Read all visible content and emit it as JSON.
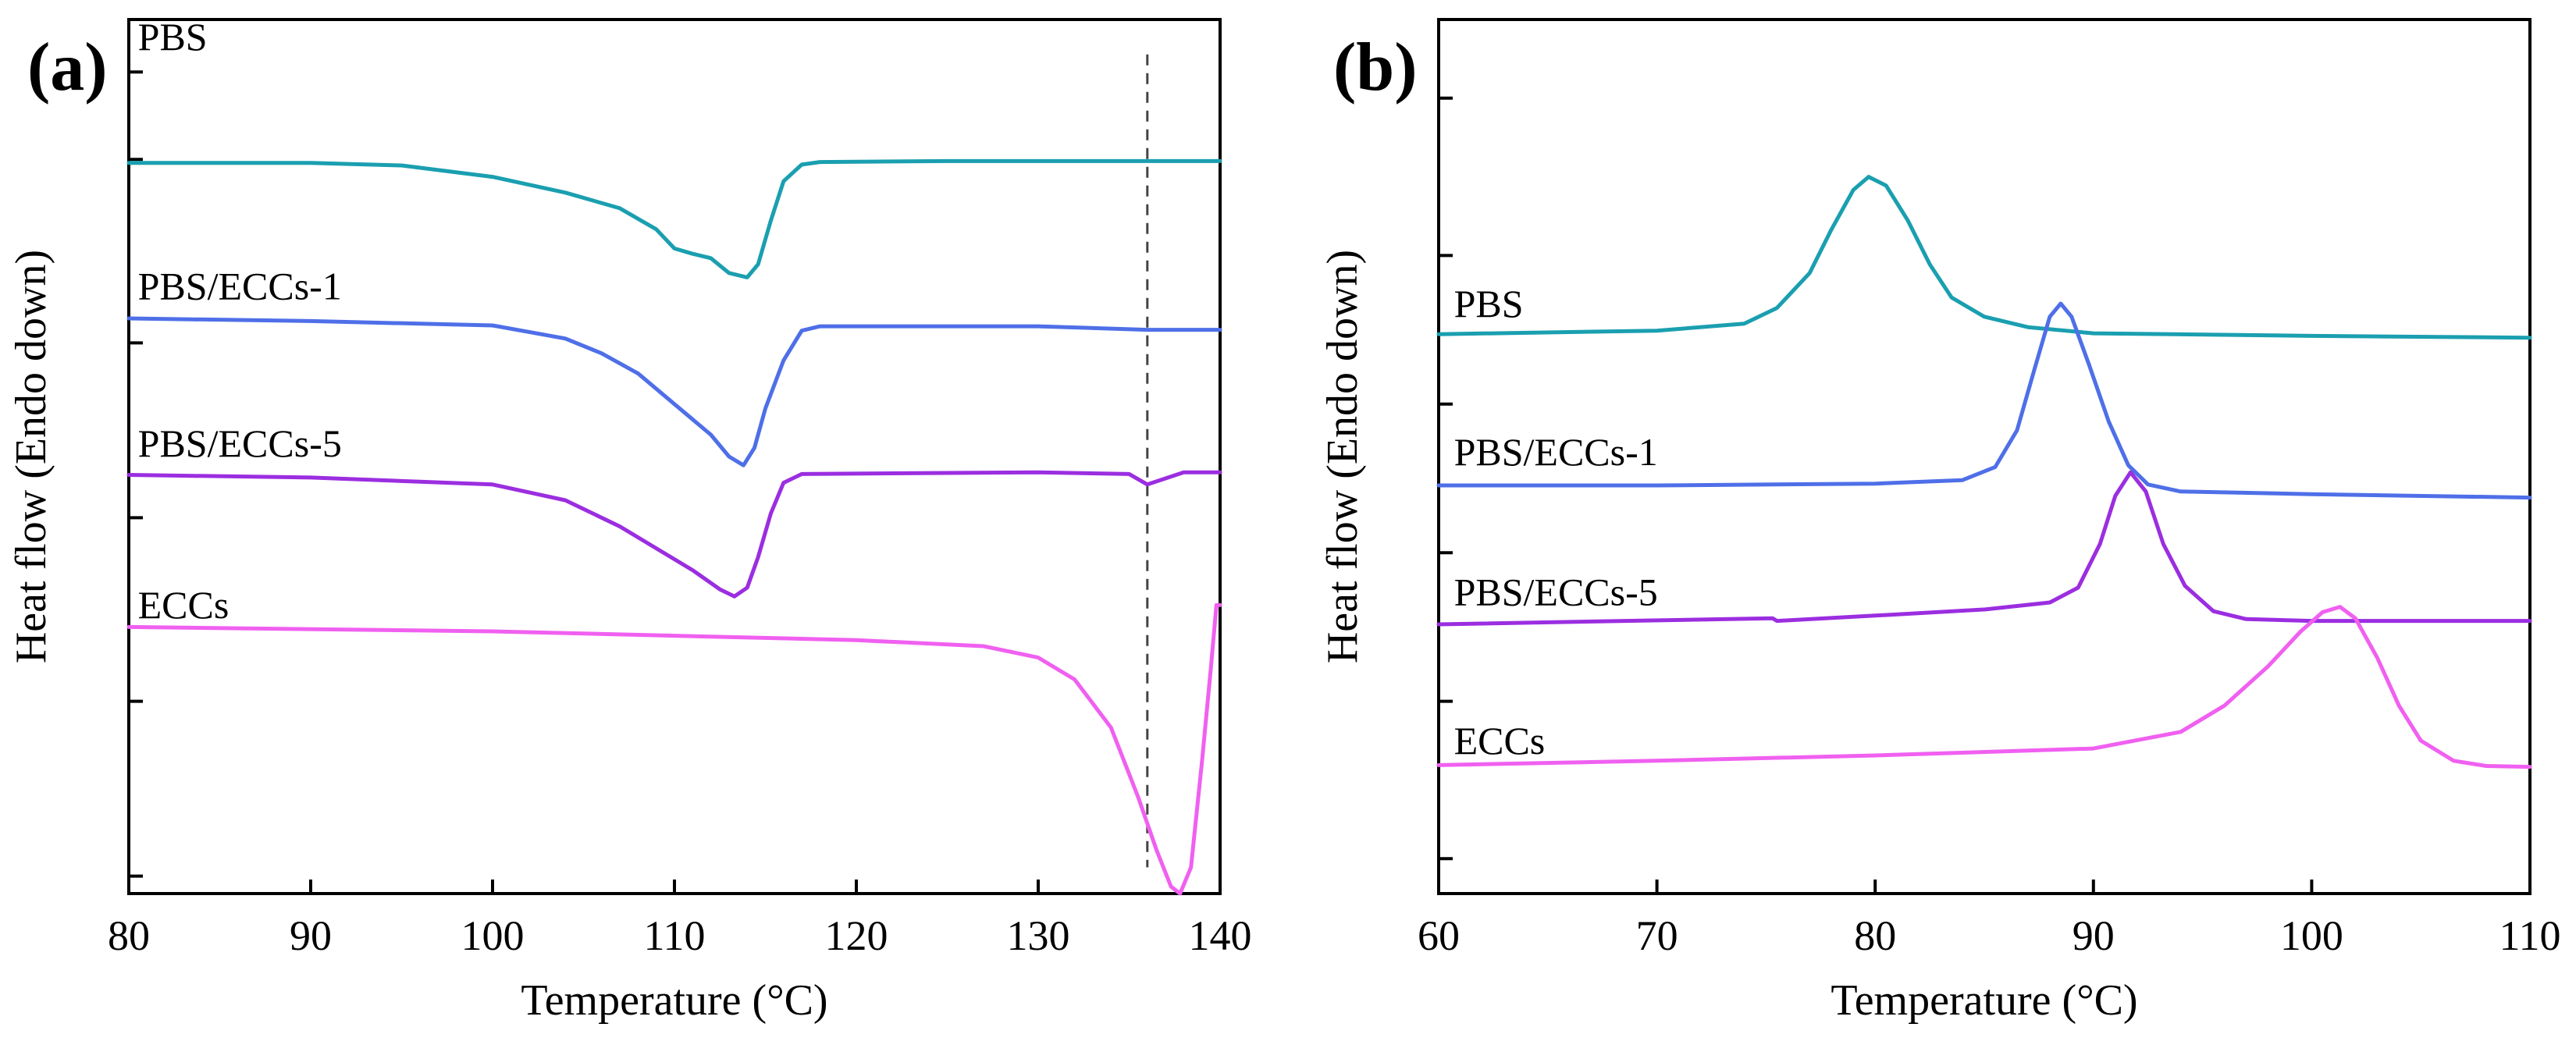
{
  "chart_data": [
    {
      "type": "line",
      "panel_label": "(a)",
      "xlabel": "Temperature (°C)",
      "ylabel": "Heat flow (Endo down)",
      "xlim": [
        80,
        140
      ],
      "ylim": [
        0,
        100
      ],
      "xticks": [
        80,
        90,
        100,
        110,
        120,
        130,
        140
      ],
      "yticks": [
        2,
        22,
        43,
        63,
        84,
        94
      ],
      "grid": false,
      "legend": "inline labels",
      "reference_x": 136,
      "series": [
        {
          "name": "PBS",
          "color": "#1a9fb0",
          "label_x": 80.5,
          "label_y": 96.5,
          "points": [
            [
              80,
              83.6
            ],
            [
              90,
              83.6
            ],
            [
              95,
              83.3
            ],
            [
              100,
              82
            ],
            [
              104,
              80.2
            ],
            [
              107,
              78.4
            ],
            [
              109,
              76
            ],
            [
              110,
              73.8
            ],
            [
              111,
              73.2
            ],
            [
              112,
              72.7
            ],
            [
              113,
              71
            ],
            [
              114,
              70.5
            ],
            [
              114.6,
              72
            ],
            [
              115.3,
              77
            ],
            [
              116,
              81.5
            ],
            [
              117,
              83.4
            ],
            [
              118,
              83.7
            ],
            [
              125,
              83.8
            ],
            [
              140,
              83.8
            ]
          ]
        },
        {
          "name": "PBS/ECCs-1",
          "color": "#4f6fe8",
          "label_x": 80.5,
          "label_y": 68,
          "points": [
            [
              80,
              65.8
            ],
            [
              90,
              65.5
            ],
            [
              100,
              65
            ],
            [
              104,
              63.5
            ],
            [
              106,
              61.8
            ],
            [
              108,
              59.5
            ],
            [
              110,
              56
            ],
            [
              112,
              52.5
            ],
            [
              113,
              50
            ],
            [
              113.8,
              49
            ],
            [
              114.4,
              51
            ],
            [
              115,
              55.5
            ],
            [
              116,
              61
            ],
            [
              117,
              64.4
            ],
            [
              118,
              64.9
            ],
            [
              130,
              64.9
            ],
            [
              136,
              64.5
            ],
            [
              140,
              64.5
            ]
          ]
        },
        {
          "name": "PBS/ECCs-5",
          "color": "#9b2ee0",
          "label_x": 80.5,
          "label_y": 50,
          "points": [
            [
              80,
              47.9
            ],
            [
              90,
              47.6
            ],
            [
              100,
              46.8
            ],
            [
              104,
              45
            ],
            [
              107,
              42
            ],
            [
              109,
              39.5
            ],
            [
              111,
              37
            ],
            [
              112.5,
              34.8
            ],
            [
              113.3,
              34
            ],
            [
              114,
              35
            ],
            [
              114.6,
              38.5
            ],
            [
              115.3,
              43.5
            ],
            [
              116,
              47
            ],
            [
              117,
              48
            ],
            [
              130,
              48.2
            ],
            [
              135,
              48
            ],
            [
              136,
              46.8
            ],
            [
              137,
              47.5
            ],
            [
              138,
              48.2
            ],
            [
              140,
              48.2
            ]
          ]
        },
        {
          "name": "ECCs",
          "color": "#f060f0",
          "label_x": 80.5,
          "label_y": 31.5,
          "points": [
            [
              80,
              30.5
            ],
            [
              100,
              30
            ],
            [
              120,
              29
            ],
            [
              127,
              28.3
            ],
            [
              130,
              27
            ],
            [
              132,
              24.5
            ],
            [
              134,
              19
            ],
            [
              135.5,
              11
            ],
            [
              136.5,
              5
            ],
            [
              137.3,
              0.8
            ],
            [
              137.8,
              0
            ],
            [
              138.4,
              3
            ],
            [
              139,
              15
            ],
            [
              139.5,
              26
            ],
            [
              139.8,
              33
            ],
            [
              140,
              33
            ]
          ]
        }
      ]
    },
    {
      "type": "line",
      "panel_label": "(b)",
      "xlabel": "Temperature (°C)",
      "ylabel": "Heat flow (Endo down)",
      "xlim": [
        60,
        110
      ],
      "ylim": [
        0,
        100
      ],
      "xticks": [
        60,
        70,
        80,
        90,
        100,
        110
      ],
      "yticks": [
        4,
        22,
        39,
        56,
        73,
        91
      ],
      "grid": false,
      "legend": "inline labels",
      "series": [
        {
          "name": "PBS",
          "color": "#1a9fb0",
          "label_x": 60.7,
          "label_y": 66,
          "points": [
            [
              60,
              64
            ],
            [
              70,
              64.4
            ],
            [
              74,
              65.2
            ],
            [
              75.5,
              67
            ],
            [
              77,
              71
            ],
            [
              78,
              76
            ],
            [
              79,
              80.5
            ],
            [
              79.7,
              82
            ],
            [
              80.5,
              81
            ],
            [
              81.5,
              77
            ],
            [
              82.5,
              72
            ],
            [
              83.5,
              68.2
            ],
            [
              85,
              66
            ],
            [
              87,
              64.8
            ],
            [
              90,
              64.1
            ],
            [
              100,
              63.8
            ],
            [
              110,
              63.6
            ]
          ]
        },
        {
          "name": "PBS/ECCs-1",
          "color": "#4f6fe8",
          "label_x": 60.7,
          "label_y": 49,
          "points": [
            [
              60,
              46.7
            ],
            [
              70,
              46.7
            ],
            [
              80,
              46.9
            ],
            [
              84,
              47.3
            ],
            [
              85.5,
              48.8
            ],
            [
              86.5,
              53
            ],
            [
              87.3,
              60
            ],
            [
              88,
              66
            ],
            [
              88.5,
              67.5
            ],
            [
              89,
              66
            ],
            [
              89.8,
              60.5
            ],
            [
              90.7,
              54
            ],
            [
              91.6,
              49
            ],
            [
              92.5,
              46.8
            ],
            [
              94,
              46
            ],
            [
              100,
              45.7
            ],
            [
              110,
              45.3
            ]
          ]
        },
        {
          "name": "PBS/ECCs-5",
          "color": "#9b2ee0",
          "label_x": 60.7,
          "label_y": 33,
          "points": [
            [
              60,
              30.8
            ],
            [
              75.3,
              31.5
            ],
            [
              75.5,
              31.2
            ],
            [
              80,
              31.8
            ],
            [
              85,
              32.5
            ],
            [
              88,
              33.3
            ],
            [
              89.3,
              35
            ],
            [
              90.3,
              40
            ],
            [
              91,
              45.5
            ],
            [
              91.7,
              48.2
            ],
            [
              92.4,
              46
            ],
            [
              93.2,
              40
            ],
            [
              94.2,
              35.2
            ],
            [
              95.5,
              32.3
            ],
            [
              97,
              31.4
            ],
            [
              100,
              31.2
            ],
            [
              110,
              31.2
            ]
          ]
        },
        {
          "name": "ECCs",
          "color": "#f060f0",
          "label_x": 60.7,
          "label_y": 16,
          "points": [
            [
              60,
              14.7
            ],
            [
              70,
              15.2
            ],
            [
              80,
              15.8
            ],
            [
              90,
              16.6
            ],
            [
              94,
              18.5
            ],
            [
              96,
              21.5
            ],
            [
              98,
              26
            ],
            [
              99.5,
              30
            ],
            [
              100.5,
              32.2
            ],
            [
              101.3,
              32.8
            ],
            [
              102,
              31.5
            ],
            [
              103,
              27
            ],
            [
              104,
              21.5
            ],
            [
              105,
              17.5
            ],
            [
              106.5,
              15.2
            ],
            [
              108,
              14.6
            ],
            [
              110,
              14.5
            ]
          ]
        }
      ]
    }
  ]
}
